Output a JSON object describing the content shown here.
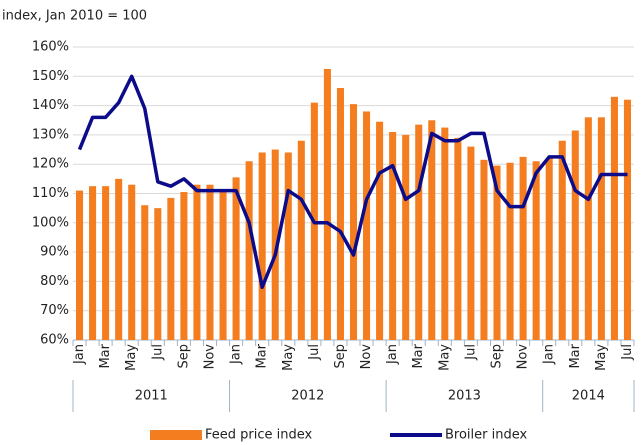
{
  "chart_data": {
    "type": "bar-line",
    "subtitle": "index, Jan 2010 = 100",
    "categories": [
      "Jan",
      null,
      "Mar",
      null,
      "May",
      null,
      "Jul",
      null,
      "Sep",
      null,
      "Nov",
      null,
      "Jan",
      null,
      "Mar",
      null,
      "May",
      null,
      "Jul",
      null,
      "Sep",
      null,
      "Nov",
      null,
      "Jan",
      null,
      "Mar",
      null,
      "May",
      null,
      "Jul",
      null,
      "Sep",
      null,
      "Nov",
      null,
      "Jan",
      null,
      "Mar",
      null,
      "May",
      null,
      "Jul"
    ],
    "x_groups": [
      {
        "label": "2011",
        "count": 12
      },
      {
        "label": "2012",
        "count": 12
      },
      {
        "label": "2013",
        "count": 12
      },
      {
        "label": "2014",
        "count": 7
      }
    ],
    "series": [
      {
        "name": "Feed price index",
        "type": "bar",
        "color": "#f47d20",
        "values": [
          111,
          112.5,
          112.5,
          115,
          113,
          106,
          105,
          108.5,
          110.5,
          113,
          113,
          111,
          115.5,
          121,
          124,
          125,
          124,
          128,
          141,
          152.5,
          146,
          140.5,
          138,
          134.5,
          131,
          130,
          133.5,
          135,
          132.5,
          129,
          126,
          121.5,
          119.5,
          120.5,
          122.5,
          121,
          122,
          128,
          131.5,
          136,
          136,
          143,
          142
        ]
      },
      {
        "name": "Broiler index",
        "type": "line",
        "color": "#0c0c8a",
        "values": [
          125,
          136,
          136,
          141,
          150,
          139,
          114,
          112.5,
          115,
          111,
          111,
          111,
          111,
          100,
          78,
          89,
          111,
          108,
          100,
          100,
          97,
          89,
          108,
          117,
          119.5,
          108,
          111,
          130.5,
          128,
          128,
          130.5,
          130.5,
          111,
          105.5,
          105.5,
          117,
          122.5,
          122.5,
          111,
          108,
          116.5,
          116.5,
          116.5
        ]
      }
    ],
    "ylim": [
      60,
      160
    ],
    "yticks": [
      {
        "value": 60,
        "label": "60%"
      },
      {
        "value": 70,
        "label": "70%"
      },
      {
        "value": 80,
        "label": "80%"
      },
      {
        "value": 90,
        "label": "90%"
      },
      {
        "value": 100,
        "label": "100%"
      },
      {
        "value": 110,
        "label": "110%"
      },
      {
        "value": 120,
        "label": "120%"
      },
      {
        "value": 130,
        "label": "130%"
      },
      {
        "value": 140,
        "label": "140%"
      },
      {
        "value": 150,
        "label": "150%"
      },
      {
        "value": 160,
        "label": "160%"
      }
    ],
    "grid": true,
    "legend": "bottom"
  }
}
